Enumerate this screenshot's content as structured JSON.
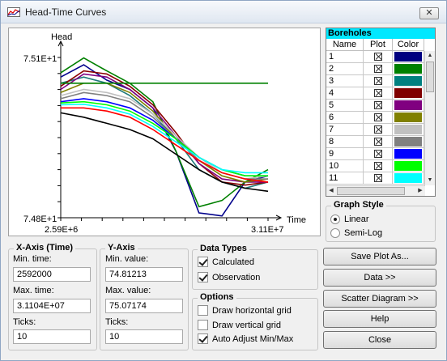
{
  "window": {
    "title": "Head-Time Curves",
    "close_glyph": "✕"
  },
  "chart": {
    "y_axis_title": "Head",
    "x_axis_title": "Time",
    "y_max_label": "7.51E+1",
    "y_min_label": "7.48E+1",
    "x_min_label": "2.59E+6",
    "x_max_label": "3.11E+7"
  },
  "chart_data": {
    "type": "line",
    "xlabel": "Time",
    "ylabel": "Head",
    "xlim": [
      2592000,
      31104000
    ],
    "ylim": [
      74.81213,
      75.07174
    ],
    "x": [
      2592000,
      5760000,
      8928000,
      12096000,
      15264000,
      18432000,
      21600000,
      24768000,
      27936000,
      31104000
    ],
    "series": [
      {
        "color": "#00008b",
        "values": [
          75.04,
          75.06,
          75.035,
          75.02,
          74.99,
          74.92,
          74.82,
          74.815,
          74.87,
          74.88
        ]
      },
      {
        "color": "#008000",
        "values": [
          75.047,
          75.071,
          75.05,
          75.03,
          75.0,
          74.92,
          74.83,
          74.84,
          74.87,
          74.89
        ]
      },
      {
        "color": "#1f7a7a",
        "values": [
          75.03,
          75.04,
          75.03,
          75.01,
          74.98,
          74.94,
          74.89,
          74.87,
          74.86,
          74.87
        ]
      },
      {
        "color": "#8b0000",
        "values": [
          75.025,
          75.05,
          75.045,
          75.025,
          74.995,
          74.95,
          74.9,
          74.87,
          74.865,
          74.87
        ]
      },
      {
        "color": "#800080",
        "values": [
          75.02,
          75.045,
          75.04,
          75.02,
          74.99,
          74.945,
          74.9,
          74.875,
          74.87,
          74.87
        ]
      },
      {
        "color": "#808000",
        "values": [
          75.015,
          75.03,
          75.03,
          75.015,
          74.985,
          74.94,
          74.905,
          74.88,
          74.87,
          74.875
        ]
      },
      {
        "color": "#c0c0c0",
        "values": [
          75.01,
          75.02,
          75.015,
          75.005,
          74.98,
          74.945,
          74.91,
          74.885,
          74.875,
          74.88
        ]
      },
      {
        "color": "#808080",
        "values": [
          75.005,
          75.015,
          75.01,
          75.0,
          74.975,
          74.94,
          74.905,
          74.885,
          74.875,
          74.875
        ]
      },
      {
        "color": "#0000ff",
        "values": [
          75.0,
          75.005,
          75.0,
          74.99,
          74.97,
          74.94,
          74.91,
          74.89,
          74.88,
          74.88
        ]
      },
      {
        "color": "#00ff00",
        "values": [
          74.998,
          75.0,
          74.995,
          74.985,
          74.965,
          74.94,
          74.91,
          74.89,
          74.88,
          74.88
        ]
      },
      {
        "color": "#00ffff",
        "values": [
          74.995,
          74.996,
          74.99,
          74.98,
          74.96,
          74.935,
          74.91,
          74.89,
          74.885,
          74.885
        ]
      },
      {
        "color": "#ff0000",
        "values": [
          74.99,
          74.99,
          74.985,
          74.975,
          74.955,
          74.93,
          74.905,
          74.885,
          74.875,
          74.87
        ]
      },
      {
        "color": "#000000",
        "values": [
          74.982,
          74.975,
          74.965,
          74.955,
          74.94,
          74.915,
          74.89,
          74.87,
          74.86,
          74.855
        ]
      },
      {
        "color": "#008000",
        "values": [
          75.03,
          75.03,
          75.03,
          75.03,
          75.03,
          75.03,
          75.03,
          75.03,
          75.03,
          75.03
        ]
      }
    ]
  },
  "boreholes": {
    "title": "Boreholes",
    "columns": [
      "Name",
      "Plot",
      "Color"
    ],
    "rows": [
      {
        "name": "1",
        "color": "#000080"
      },
      {
        "name": "2",
        "color": "#008000"
      },
      {
        "name": "3",
        "color": "#008080"
      },
      {
        "name": "4",
        "color": "#800000"
      },
      {
        "name": "5",
        "color": "#800080"
      },
      {
        "name": "6",
        "color": "#808000"
      },
      {
        "name": "7",
        "color": "#c0c0c0"
      },
      {
        "name": "8",
        "color": "#808080"
      },
      {
        "name": "9",
        "color": "#0000ff"
      },
      {
        "name": "10",
        "color": "#00ff00"
      },
      {
        "name": "11",
        "color": "#00ffff"
      }
    ]
  },
  "graph_style": {
    "title": "Graph Style",
    "linear": "Linear",
    "semilog": "Semi-Log"
  },
  "x_axis": {
    "title": "X-Axis (Time)",
    "min_label": "Min. time:",
    "min_value": "2592000",
    "max_label": "Max. time:",
    "max_value": "3.1104E+07",
    "ticks_label": "Ticks:",
    "ticks_value": "10"
  },
  "y_axis": {
    "title": "Y-Axis",
    "min_label": "Min. value:",
    "min_value": "74.81213",
    "max_label": "Max. value:",
    "max_value": "75.07174",
    "ticks_label": "Ticks:",
    "ticks_value": "10"
  },
  "data_types": {
    "title": "Data Types",
    "calculated": "Calculated",
    "observation": "Observation"
  },
  "options": {
    "title": "Options",
    "horizontal_grid": "Draw horizontal grid",
    "vertical_grid": "Draw vertical grid",
    "auto_adjust": "Auto Adjust Min/Max"
  },
  "buttons": {
    "save_plot": "Save Plot As...",
    "data": "Data >>",
    "scatter": "Scatter Diagram >>",
    "help": "Help",
    "close": "Close"
  }
}
